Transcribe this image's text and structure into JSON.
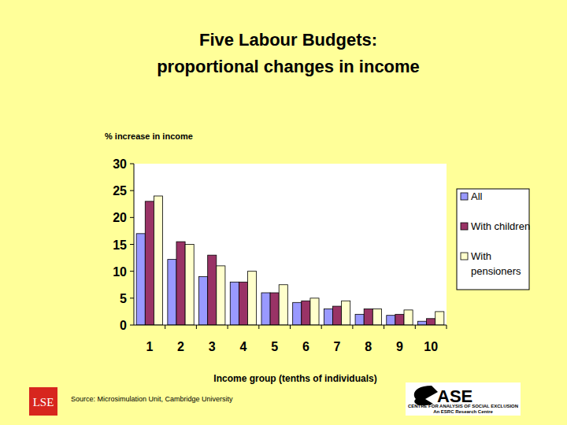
{
  "chart_data": {
    "type": "bar",
    "title": "Five Labour Budgets:",
    "subtitle": "proportional changes in income",
    "y_label": "% increase in income",
    "x_label": "Income group (tenths of individuals)",
    "categories": [
      "1",
      "2",
      "3",
      "4",
      "5",
      "6",
      "7",
      "8",
      "9",
      "10"
    ],
    "series": [
      {
        "name": "All",
        "color": "#9999ff",
        "values": [
          17,
          12.2,
          9,
          8,
          6,
          4.2,
          3,
          2,
          1.8,
          0.7
        ]
      },
      {
        "name": "With children",
        "color": "#993366",
        "values": [
          23,
          15.5,
          13,
          8,
          6,
          4.5,
          3.5,
          3,
          2,
          1.2
        ]
      },
      {
        "name": "With pensioners",
        "color": "#ffffcc",
        "values": [
          24,
          15,
          11,
          10,
          7.5,
          5,
          4.5,
          3,
          2.8,
          2.5
        ]
      }
    ],
    "ylim": [
      0,
      30
    ],
    "yticks": [
      0,
      5,
      10,
      15,
      20,
      25,
      30
    ],
    "grid": false,
    "legend": "right",
    "annotations": [
      "Source: Microsimulation Unit, Cambridge University",
      "LSE",
      "ASE",
      "CENTRE FOR ANALYSIS OF SOCIAL EXCLUSION",
      "An ESRC Research Centre"
    ]
  }
}
